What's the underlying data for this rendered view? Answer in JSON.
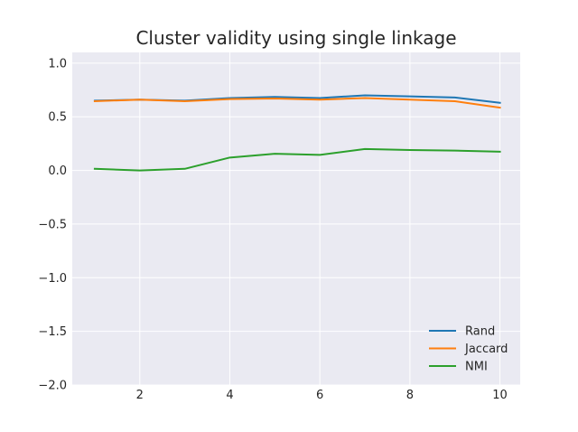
{
  "chart_data": {
    "type": "line",
    "title": "Cluster validity using single linkage",
    "xlabel": "",
    "ylabel": "",
    "x": [
      1,
      2,
      3,
      4,
      5,
      6,
      7,
      8,
      9,
      10
    ],
    "xlim": [
      0.5,
      10.45
    ],
    "ylim": [
      -2.0,
      1.1
    ],
    "xticks": [
      2,
      4,
      6,
      8,
      10
    ],
    "xtick_labels": [
      "2",
      "4",
      "6",
      "8",
      "10"
    ],
    "yticks": [
      -2.0,
      -1.5,
      -1.0,
      -0.5,
      0.0,
      0.5,
      1.0
    ],
    "ytick_labels": [
      "−2.0",
      "−1.5",
      "−1.0",
      "−0.5",
      "0.0",
      "0.5",
      "1.0"
    ],
    "grid": true,
    "legend_position": "bottom-right",
    "background": "#eaeaf2",
    "series": [
      {
        "name": "Rand",
        "color": "#1f77b4",
        "values": [
          0.65,
          0.66,
          0.65,
          0.675,
          0.685,
          0.675,
          0.7,
          0.69,
          0.68,
          0.63
        ]
      },
      {
        "name": "Jaccard",
        "color": "#ff7f0e",
        "values": [
          0.645,
          0.66,
          0.645,
          0.665,
          0.67,
          0.66,
          0.675,
          0.66,
          0.645,
          0.585
        ]
      },
      {
        "name": "NMI",
        "color": "#2ca02c",
        "values": [
          0.015,
          0.0,
          0.015,
          0.12,
          0.155,
          0.145,
          0.2,
          0.19,
          0.185,
          0.175
        ]
      }
    ]
  }
}
